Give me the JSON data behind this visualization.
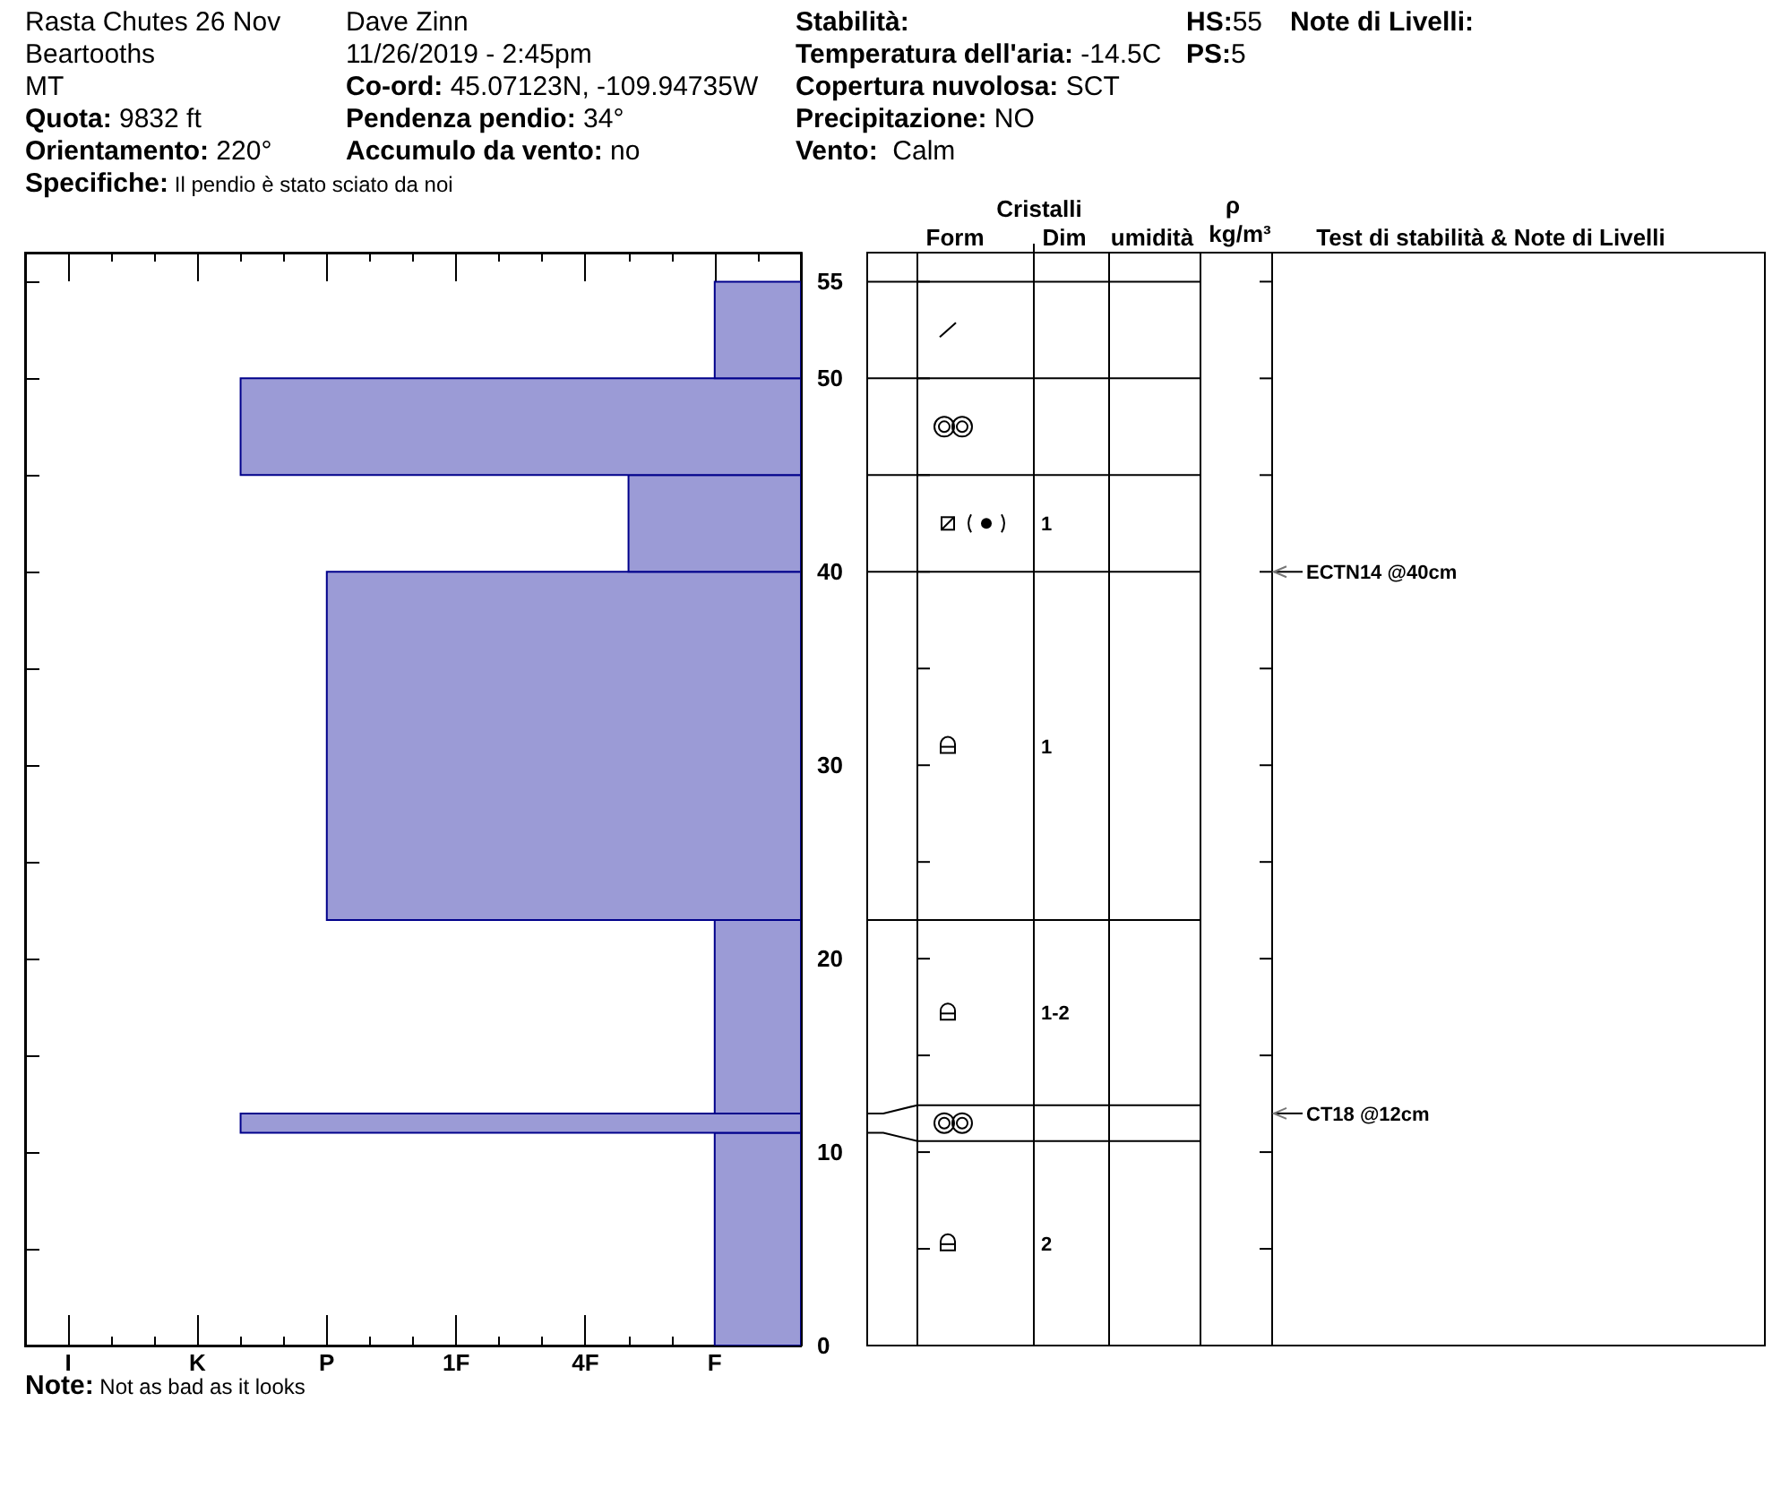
{
  "chart_data": {
    "type": "histogram",
    "orientation": "horizontal",
    "title": "Rasta Chutes 26 Nov",
    "annotations": [
      "Beartooths",
      "MT",
      "Quota: 9832 ft",
      "Orientamento: 220°",
      "Specifiche: Il pendio è stato sciato da noi",
      "Dave Zinn",
      "11/26/2019 - 2:45pm",
      "Co-ord: 45.07123N, -109.94735W",
      "Pendenza pendio: 34°",
      "Accumulo da vento: no",
      "Stabilità:",
      "Temperatura dell'aria: -14.5C",
      "Copertura nuvolosa: SCT",
      "Precipitazione: NO",
      "Vento:  Calm",
      "HS:55",
      "PS:5",
      "Note di Livelli:",
      "Note: Not as bad as it looks",
      "Cristalli",
      "Form",
      "Dim",
      "umidità",
      "ρ",
      "kg/m³",
      "Test di stabilità & Note di Livelli",
      "1",
      "1",
      "1-2",
      "2",
      "ECTN14 @40cm",
      "CT18 @12cm"
    ],
    "bins": [
      0,
      11,
      12,
      22,
      40,
      45,
      50,
      55
    ],
    "base": [
      9,
      9,
      9,
      9,
      9,
      9,
      9
    ],
    "values": [
      -2,
      -13,
      -2,
      -11,
      -4,
      -13,
      -2
    ],
    "color": "#9b9bd6",
    "xlim": [
      -9,
      9
    ],
    "xticks": [
      {
        "value": -8,
        "label": "I"
      },
      {
        "value": -7,
        "label": null
      },
      {
        "value": -6,
        "label": null
      },
      {
        "value": -5,
        "label": "K"
      },
      {
        "value": -4,
        "label": null
      },
      {
        "value": -3,
        "label": null
      },
      {
        "value": -2,
        "label": "P"
      },
      {
        "value": -1,
        "label": null
      },
      {
        "value": 0,
        "label": null
      },
      {
        "value": 1,
        "label": "1F"
      },
      {
        "value": 2,
        "label": null
      },
      {
        "value": 3,
        "label": null
      },
      {
        "value": 4,
        "label": "4F"
      },
      {
        "value": 5,
        "label": null
      },
      {
        "value": 6,
        "label": null
      },
      {
        "value": 7,
        "label": "F"
      },
      {
        "value": 8,
        "label": null
      }
    ],
    "ylim": [
      0,
      56.5
    ],
    "yticks": [
      0,
      {
        "value": 5,
        "label": null
      },
      10,
      {
        "value": 15,
        "label": null
      },
      20,
      {
        "value": 25,
        "label": null
      },
      30,
      {
        "value": 35,
        "label": null
      },
      40,
      {
        "value": 45,
        "label": null
      },
      50,
      55
    ]
  }
}
